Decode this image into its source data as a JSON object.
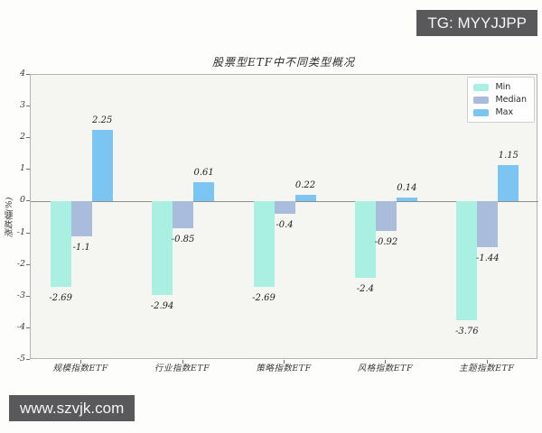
{
  "watermarks": {
    "telegram_badge": "TG: MYYJJPP",
    "website_badge": "www.szvjk.com"
  },
  "chart_data": {
    "type": "bar",
    "title": "股票型ETF中不同类型概况",
    "xlabel": "",
    "ylabel": "涨跌幅(%)",
    "categories": [
      "规模指数ETF",
      "行业指数ETF",
      "策略指数ETF",
      "风格指数ETF",
      "主题指数ETF"
    ],
    "series": [
      {
        "name": "Min",
        "color": "#a9efe2",
        "values": [
          -2.69,
          -2.94,
          -2.69,
          -2.4,
          -3.76
        ]
      },
      {
        "name": "Median",
        "color": "#a9bcdb",
        "values": [
          -1.1,
          -0.85,
          -0.4,
          -0.92,
          -1.44
        ]
      },
      {
        "name": "Max",
        "color": "#7cc5f2",
        "values": [
          2.25,
          0.61,
          0.22,
          0.14,
          1.15
        ]
      }
    ],
    "ylim": [
      -5,
      4
    ],
    "yticks": [
      4,
      3,
      2,
      1,
      0,
      -1,
      -2,
      -3,
      -4,
      -5
    ],
    "legend_position": "upper right",
    "grid": false,
    "bar_value_labels": true,
    "plot_bg_color": "#f5f5f2",
    "zero_line_color": "#8f8f8f"
  }
}
